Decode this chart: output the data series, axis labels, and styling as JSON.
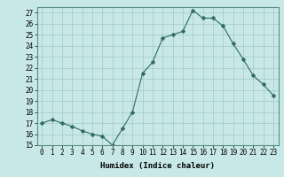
{
  "x": [
    0,
    1,
    2,
    3,
    4,
    5,
    6,
    7,
    8,
    9,
    10,
    11,
    12,
    13,
    14,
    15,
    16,
    17,
    18,
    19,
    20,
    21,
    22,
    23
  ],
  "y": [
    17,
    17.3,
    17,
    16.7,
    16.3,
    16,
    15.8,
    15,
    16.5,
    18,
    21.5,
    22.5,
    24.7,
    25,
    25.3,
    27.2,
    26.5,
    26.5,
    25.8,
    24.2,
    22.8,
    21.3,
    20.5,
    19.5
  ],
  "line_color": "#2d6b5e",
  "marker": "D",
  "marker_size": 2.5,
  "bg_color": "#c8e8e8",
  "grid_color": "#a0c8c8",
  "xlabel": "Humidex (Indice chaleur)",
  "ylim": [
    15,
    27.5
  ],
  "yticks": [
    15,
    16,
    17,
    18,
    19,
    20,
    21,
    22,
    23,
    24,
    25,
    26,
    27
  ],
  "xticks": [
    0,
    1,
    2,
    3,
    4,
    5,
    6,
    7,
    8,
    9,
    10,
    11,
    12,
    13,
    14,
    15,
    16,
    17,
    18,
    19,
    20,
    21,
    22,
    23
  ],
  "tick_fontsize": 5.5,
  "label_fontsize": 6.5
}
